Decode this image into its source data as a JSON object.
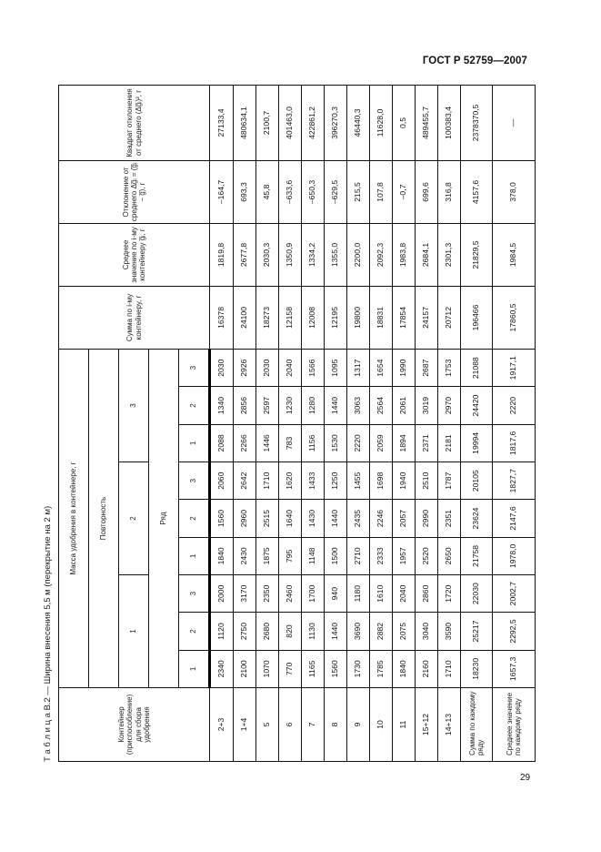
{
  "doc_header": "ГОСТ Р 52759—2007",
  "page_number": "29",
  "caption": "Т а б л и ц а  В.2 — Ширина внесения 5,5 м (перекрытие на 2 м)",
  "headers": {
    "container": "Контейнер (приспособление) для сбора удобрения",
    "mass": "Масса удобрения в контейнере, г",
    "repetition": "Повторность",
    "repetitions": [
      "1",
      "2",
      "3"
    ],
    "row_label": "Ряд",
    "row_numbers": [
      "1",
      "2",
      "3",
      "1",
      "2",
      "3",
      "1",
      "2",
      "3"
    ],
    "sum": "Сумма по i-му контейнеру, г",
    "mean": "Среднее значение по i-му контейнеру g̅ᵢ, г",
    "deviation": "Отклонение от среднего Δg̅ᵢ = (g̅ᵢ − g̅), г",
    "square": "Квадрат отклонения от среднего (Δg̅ᵢ)², г"
  },
  "rows": [
    {
      "container": "2+3",
      "values": [
        "2340",
        "1120",
        "2000",
        "1840",
        "1560",
        "2060",
        "2088",
        "1340",
        "2030"
      ],
      "sum": "16378",
      "mean": "1819,8",
      "deviation": "–164,7",
      "square": "27133,4"
    },
    {
      "container": "1+4",
      "values": [
        "2100",
        "2750",
        "3170",
        "2430",
        "2960",
        "2642",
        "2266",
        "2856",
        "2926"
      ],
      "sum": "24100",
      "mean": "2677,8",
      "deviation": "693,3",
      "square": "480634,1"
    },
    {
      "container": "5",
      "values": [
        "1070",
        "2680",
        "2350",
        "1875",
        "2515",
        "1710",
        "1446",
        "2597",
        "2030"
      ],
      "sum": "18273",
      "mean": "2030,3",
      "deviation": "45,8",
      "square": "2100,7"
    },
    {
      "container": "6",
      "values": [
        "770",
        "820",
        "2460",
        "795",
        "1640",
        "1620",
        "783",
        "1230",
        "2040"
      ],
      "sum": "12158",
      "mean": "1350,9",
      "deviation": "–633,6",
      "square": "401463,0"
    },
    {
      "container": "7",
      "values": [
        "1165",
        "1130",
        "1700",
        "1148",
        "1430",
        "1433",
        "1156",
        "1280",
        "1566"
      ],
      "sum": "12008",
      "mean": "1334,2",
      "deviation": "–650,3",
      "square": "422861,2"
    },
    {
      "container": "8",
      "values": [
        "1560",
        "1440",
        "940",
        "1500",
        "1440",
        "1250",
        "1530",
        "1440",
        "1095"
      ],
      "sum": "12195",
      "mean": "1355,0",
      "deviation": "–629,5",
      "square": "396270,3"
    },
    {
      "container": "9",
      "values": [
        "1730",
        "3690",
        "1180",
        "2710",
        "2435",
        "1455",
        "2220",
        "3063",
        "1317"
      ],
      "sum": "19800",
      "mean": "2200,0",
      "deviation": "215,5",
      "square": "46440,3"
    },
    {
      "container": "10",
      "values": [
        "1785",
        "2882",
        "1610",
        "2333",
        "2246",
        "1698",
        "2059",
        "2564",
        "1654"
      ],
      "sum": "18831",
      "mean": "2092,3",
      "deviation": "107,8",
      "square": "11628,0"
    },
    {
      "container": "11",
      "values": [
        "1840",
        "2075",
        "2040",
        "1957",
        "2057",
        "1940",
        "1894",
        "2061",
        "1990"
      ],
      "sum": "17854",
      "mean": "1983,8",
      "deviation": "–0,7",
      "square": "0,5"
    },
    {
      "container": "15+12",
      "values": [
        "2160",
        "3040",
        "2860",
        "2520",
        "2990",
        "2510",
        "2371",
        "3019",
        "2687"
      ],
      "sum": "24157",
      "mean": "2684,1",
      "deviation": "699,6",
      "square": "489455,7"
    },
    {
      "container": "14+13",
      "values": [
        "1710",
        "3590",
        "1720",
        "2650",
        "2351",
        "1787",
        "2181",
        "2970",
        "1753"
      ],
      "sum": "20712",
      "mean": "2301,3",
      "deviation": "316,8",
      "square": "100383,4"
    }
  ],
  "sum_row": {
    "label": "Сумма по каждому ряду",
    "values": [
      "18230",
      "25217",
      "22030",
      "21758",
      "23624",
      "20105",
      "19994",
      "24420",
      "21088"
    ],
    "sum": "196466",
    "mean": "21829,5",
    "deviation": "4157,6",
    "square": "2378370,5"
  },
  "avg_row": {
    "label": "Среднее значение по каждому ряду",
    "values": [
      "1657,3",
      "2292,5",
      "2002,7",
      "1978,0",
      "2147,6",
      "1827,7",
      "1817,6",
      "2220",
      "1917,1"
    ],
    "sum": "17860,5",
    "mean": "1984,5",
    "deviation": "378,0",
    "square": "—"
  }
}
